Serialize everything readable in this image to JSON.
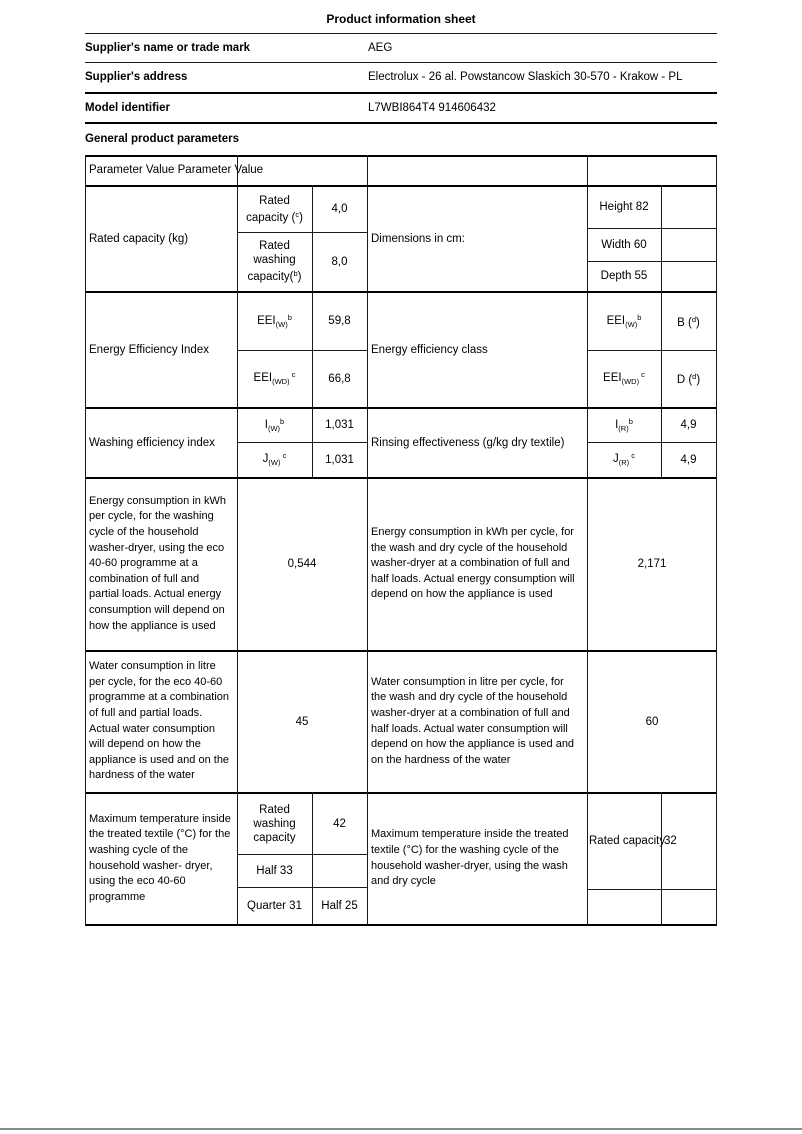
{
  "doc": {
    "title": "Product information sheet",
    "supplier_name_label": "Supplier's name or trade mark",
    "supplier_name_value": "AEG",
    "supplier_address_label": "Supplier's address",
    "supplier_address_value": "Electrolux - 26 al. Powstancow Slaskich 30-570 - Krakow - PL",
    "model_label": "Model identifier",
    "model_value": "L7WBI864T4 914606432",
    "section_header": "General product parameters"
  },
  "table": {
    "header_row": "Parameter Value Parameter Value",
    "rated_capacity": {
      "param": "Rated capacity (kg)",
      "rated_capacity_label": {
        "pre": "Rated capacity (",
        "sup": "c",
        "post": ")"
      },
      "rated_capacity_value": "4,0",
      "rated_washing_label": {
        "pre": "Rated washing capacity(",
        "sup": "b",
        "post": ")"
      },
      "rated_washing_value": "8,0",
      "dimensions_param": "Dimensions in cm:",
      "height": "Height 82",
      "width": "Width 60",
      "depth": "Depth 55"
    },
    "eei": {
      "param": "Energy Efficiency Index",
      "eei_w_label": {
        "pre": "EEI",
        "sub": "(W)",
        "sup": "b"
      },
      "eei_w_value": "59,8",
      "eei_wd_label": {
        "pre": "EEI",
        "sub": "(WD)",
        "sup": " c"
      },
      "eei_wd_value": "66,8",
      "class_param": "Energy efficiency class",
      "class_w_label": {
        "pre": "EEI",
        "sub": "(W)",
        "sup": "b"
      },
      "class_w_value": {
        "pre": "B (",
        "sup": "d",
        "post": ")"
      },
      "class_wd_label": {
        "pre": "EEI",
        "sub": "(WD)",
        "sup": " c"
      },
      "class_wd_value": {
        "pre": "D (",
        "sup": "d",
        "post": ")"
      }
    },
    "washing": {
      "param": "Washing efficiency index",
      "iw_label": {
        "pre": "I",
        "sub": "(W)",
        "sup": "b"
      },
      "iw_value": "1,031",
      "jw_label": {
        "pre": "J",
        "sub": "(W)",
        "sup": " c"
      },
      "jw_value": "1,031",
      "rinse_param": "Rinsing effectiveness (g/kg dry textile)",
      "ir_label": {
        "pre": "I",
        "sub": "(R)",
        "sup": "b"
      },
      "ir_value": "4,9",
      "jr_label": {
        "pre": "J",
        "sub": "(R)",
        "sup": " c"
      },
      "jr_value": "4,9"
    },
    "energy": {
      "param_wash": "Energy consumption in kWh per cycle, for the washing cycle of the household washer-dryer, using the eco 40-60 programme at a combination of full and partial loads. Actual energy consumption will depend on how the appliance is used",
      "value_wash": "0,544",
      "param_washdry": "Energy consumption in kWh per cycle, for the wash and dry cycle of the household washer-dryer at a combination of full and half loads. Actual energy consumption will depend on how the appliance is used",
      "value_washdry": "2,171"
    },
    "water": {
      "param_wash": "Water consumption in litre per cycle, for the eco 40-60 programme at a combination of full and partial loads. Actual water consumption will depend on how the appliance is used and on the hardness of the water",
      "value_wash": "45",
      "param_washdry": "Water consumption in litre per cycle, for the wash and dry cycle of the household washer-dryer at a combination of full and half loads. Actual water consumption will depend on how the appliance is used and on the hardness of the water",
      "value_washdry": "60"
    },
    "max_temp": {
      "param_wash": "Maximum temperature inside the treated textile (°C) for the washing cycle of the household washer- dryer, using the eco 40-60 programme",
      "rated_label": "Rated washing capacity",
      "rated_value": "42",
      "half_label": "Half 33",
      "quarter_label": "Quarter 31",
      "quarter_value": "Half 25",
      "param_washdry": "Maximum temperature inside the treated textile (°C) for the washing cycle of the household washer-dryer, using the wash and dry cycle",
      "rated_capacity_label": "Rated capacity",
      "rated_capacity_value": "32"
    }
  }
}
